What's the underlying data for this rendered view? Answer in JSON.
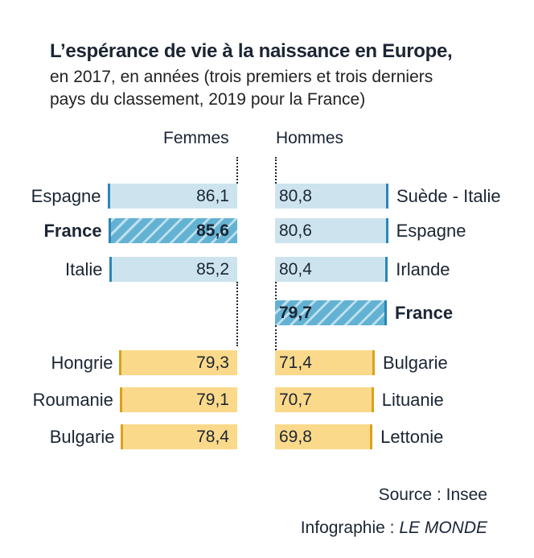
{
  "title": "L’espérance de vie à la naissance en Europe,",
  "subtitle_lines": [
    "en 2017, en années (trois premiers et trois derniers",
    "pays du classement, 2019 pour la France)"
  ],
  "chart_data": {
    "type": "bar",
    "title": "L’espérance de vie à la naissance en Europe,",
    "series": [
      {
        "name": "Femmes",
        "categories": [
          "Espagne",
          "France",
          "Italie",
          "Hongrie",
          "Roumanie",
          "Bulgarie"
        ],
        "values": [
          86.1,
          85.6,
          85.2,
          79.3,
          79.1,
          78.4
        ],
        "labels": [
          "86,1",
          "85,6",
          "85,2",
          "79,3",
          "79,1",
          "78,4"
        ]
      },
      {
        "name": "Hommes",
        "categories": [
          "Suède - Italie",
          "Espagne",
          "Irlande",
          "France",
          "Bulgarie",
          "Lituanie",
          "Lettonie"
        ],
        "values": [
          80.8,
          80.6,
          80.4,
          79.7,
          71.4,
          70.7,
          69.8
        ],
        "labels": [
          "80,8",
          "80,6",
          "80,4",
          "79,7",
          "71,4",
          "70,7",
          "69,8"
        ]
      }
    ],
    "highlight": "France",
    "colors": {
      "top": "#cde4ef",
      "top_edge": "#2a86b8",
      "france": "#64b2d3",
      "bottom": "#fbd98a",
      "bottom_edge": "#d9a21b"
    }
  },
  "source": "Source : Insee",
  "credit_prefix": "Infographie : ",
  "credit_brand": "LE MONDE"
}
